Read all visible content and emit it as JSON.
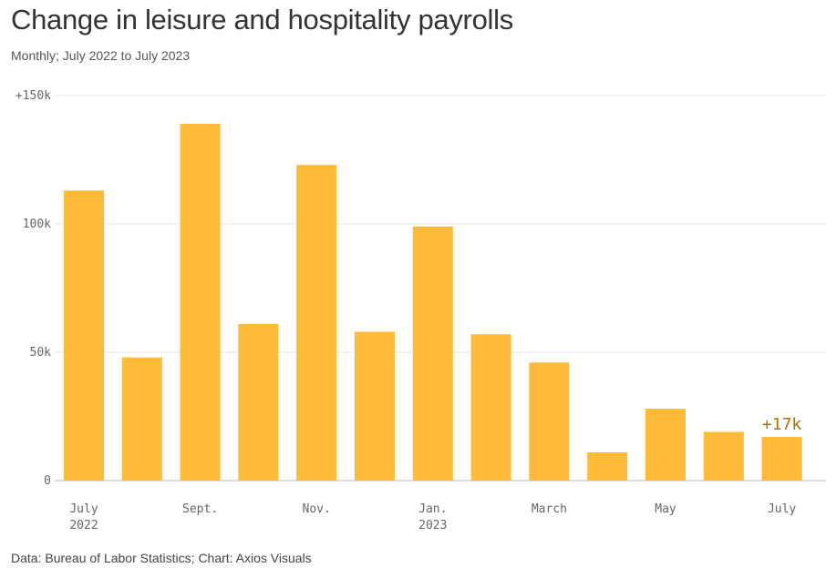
{
  "chart_data": {
    "type": "bar",
    "title": "Change in leisure and hospitality payrolls",
    "subtitle": "Monthly; July 2022 to July 2023",
    "source": "Data: Bureau of Labor Statistics; Chart: Axios Visuals",
    "categories": [
      "Jul 2022",
      "Aug 2022",
      "Sep 2022",
      "Oct 2022",
      "Nov 2022",
      "Dec 2022",
      "Jan 2023",
      "Feb 2023",
      "Mar 2023",
      "Apr 2023",
      "May 2023",
      "Jun 2023",
      "Jul 2023"
    ],
    "values": [
      113,
      48,
      139,
      61,
      123,
      58,
      99,
      57,
      46,
      11,
      28,
      19,
      17
    ],
    "unit": "thousands of jobs",
    "ylim": [
      0,
      150
    ],
    "y_ticks": [
      {
        "value": 150,
        "label": "+150k"
      },
      {
        "value": 100,
        "label": "100k"
      },
      {
        "value": 50,
        "label": "50k"
      },
      {
        "value": 0,
        "label": "0"
      }
    ],
    "x_tick_labels": [
      {
        "index": 0,
        "line1": "July",
        "line2": "2022"
      },
      {
        "index": 2,
        "line1": "Sept.",
        "line2": ""
      },
      {
        "index": 4,
        "line1": "Nov.",
        "line2": ""
      },
      {
        "index": 6,
        "line1": "Jan.",
        "line2": "2023"
      },
      {
        "index": 8,
        "line1": "March",
        "line2": ""
      },
      {
        "index": 10,
        "line1": "May",
        "line2": ""
      },
      {
        "index": 12,
        "line1": "July",
        "line2": ""
      }
    ],
    "annotations": [
      {
        "index": 12,
        "text": "+17k"
      }
    ],
    "grid": true,
    "colors": {
      "bar": "#FFBB38",
      "grid": "#E6E6E6",
      "baseline": "#BBBBBB",
      "annotation": "#A8730A"
    }
  }
}
